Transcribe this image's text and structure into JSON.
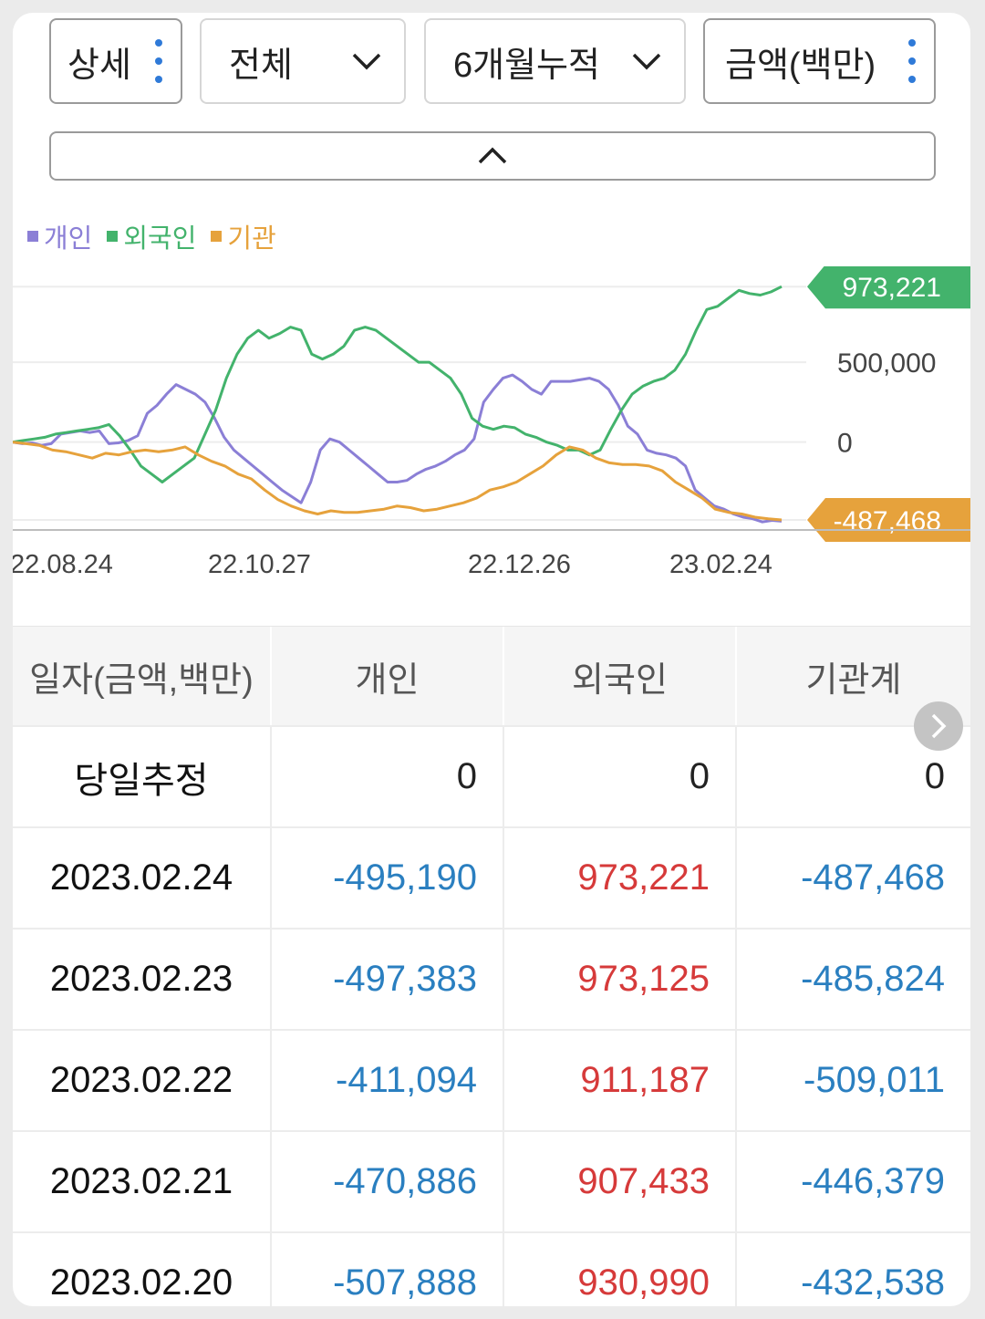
{
  "controls": {
    "detail": "상세",
    "scope": "전체",
    "period": "6개월누적",
    "unit": "금액(백만)"
  },
  "legend": [
    {
      "label": "개인",
      "color": "#8b7fd6"
    },
    {
      "label": "외국인",
      "color": "#43b36c"
    },
    {
      "label": "기관",
      "color": "#e6a23c"
    }
  ],
  "chart_data": {
    "type": "line",
    "x_labels": [
      "22.08.24",
      "22.10.27",
      "22.12.26",
      "23.02.24"
    ],
    "y_ticks": [
      500000,
      0
    ],
    "y_tick_labels": [
      "500,000",
      "0"
    ],
    "ylim": [
      -550000,
      1100000
    ],
    "last_value_badges": [
      {
        "series": "외국인",
        "label": "973,221",
        "value": 973221,
        "color": "#43b36c"
      },
      {
        "series": "기관",
        "label": "-487,468",
        "value": -487468,
        "color": "#e6a23c"
      }
    ],
    "series": [
      {
        "name": "개인",
        "color": "#8b7fd6",
        "values": [
          0,
          -10000,
          -5000,
          -20000,
          -10000,
          50000,
          60000,
          70000,
          60000,
          70000,
          -10000,
          -5000,
          10000,
          40000,
          180000,
          230000,
          300000,
          360000,
          330000,
          300000,
          250000,
          150000,
          30000,
          -50000,
          -100000,
          -150000,
          -200000,
          -250000,
          -300000,
          -340000,
          -380000,
          -250000,
          -50000,
          20000,
          0,
          -50000,
          -100000,
          -150000,
          -200000,
          -250000,
          -250000,
          -240000,
          -200000,
          -170000,
          -150000,
          -120000,
          -80000,
          -50000,
          20000,
          250000,
          330000,
          400000,
          420000,
          380000,
          330000,
          300000,
          380000,
          380000,
          380000,
          390000,
          400000,
          380000,
          330000,
          230000,
          100000,
          50000,
          -50000,
          -70000,
          -80000,
          -100000,
          -150000,
          -300000,
          -350000,
          -400000,
          -420000,
          -450000,
          -470000,
          -480000,
          -500000,
          -490000,
          -495190
        ]
      },
      {
        "name": "외국인",
        "color": "#43b36c",
        "values": [
          0,
          10000,
          20000,
          30000,
          50000,
          60000,
          70000,
          80000,
          90000,
          110000,
          40000,
          -50000,
          -150000,
          -200000,
          -250000,
          -200000,
          -150000,
          -100000,
          50000,
          200000,
          400000,
          550000,
          650000,
          700000,
          650000,
          680000,
          720000,
          700000,
          550000,
          520000,
          550000,
          600000,
          700000,
          720000,
          700000,
          650000,
          600000,
          550000,
          500000,
          500000,
          450000,
          400000,
          300000,
          150000,
          100000,
          80000,
          100000,
          90000,
          50000,
          30000,
          0,
          -20000,
          -50000,
          -50000,
          -80000,
          -50000,
          80000,
          200000,
          300000,
          350000,
          380000,
          400000,
          450000,
          550000,
          700000,
          830000,
          850000,
          900000,
          950000,
          930000,
          920000,
          940000,
          973221
        ]
      },
      {
        "name": "기관",
        "color": "#e6a23c",
        "values": [
          0,
          -10000,
          -20000,
          -50000,
          -60000,
          -80000,
          -100000,
          -70000,
          -80000,
          -60000,
          -50000,
          -60000,
          -50000,
          -30000,
          -80000,
          -120000,
          -150000,
          -200000,
          -230000,
          -300000,
          -360000,
          -400000,
          -430000,
          -450000,
          -430000,
          -440000,
          -440000,
          -430000,
          -420000,
          -400000,
          -410000,
          -430000,
          -420000,
          -400000,
          -380000,
          -350000,
          -300000,
          -280000,
          -250000,
          -200000,
          -150000,
          -80000,
          -30000,
          -50000,
          -100000,
          -130000,
          -140000,
          -140000,
          -150000,
          -180000,
          -250000,
          -300000,
          -350000,
          -420000,
          -440000,
          -450000,
          -470000,
          -480000,
          -487468
        ]
      }
    ]
  },
  "table": {
    "headers": [
      "일자(금액,백만)",
      "개인",
      "외국인",
      "기관계"
    ],
    "rows": [
      {
        "date": "당일추정",
        "individual": "0",
        "foreign": "0",
        "institution": "0"
      },
      {
        "date": "2023.02.24",
        "individual": "-495,190",
        "foreign": "973,221",
        "institution": "-487,468"
      },
      {
        "date": "2023.02.23",
        "individual": "-497,383",
        "foreign": "973,125",
        "institution": "-485,824"
      },
      {
        "date": "2023.02.22",
        "individual": "-411,094",
        "foreign": "911,187",
        "institution": "-509,011"
      },
      {
        "date": "2023.02.21",
        "individual": "-470,886",
        "foreign": "907,433",
        "institution": "-446,379"
      },
      {
        "date": "2023.02.20",
        "individual": "-507,888",
        "foreign": "930,990",
        "institution": "-432,538"
      }
    ]
  }
}
